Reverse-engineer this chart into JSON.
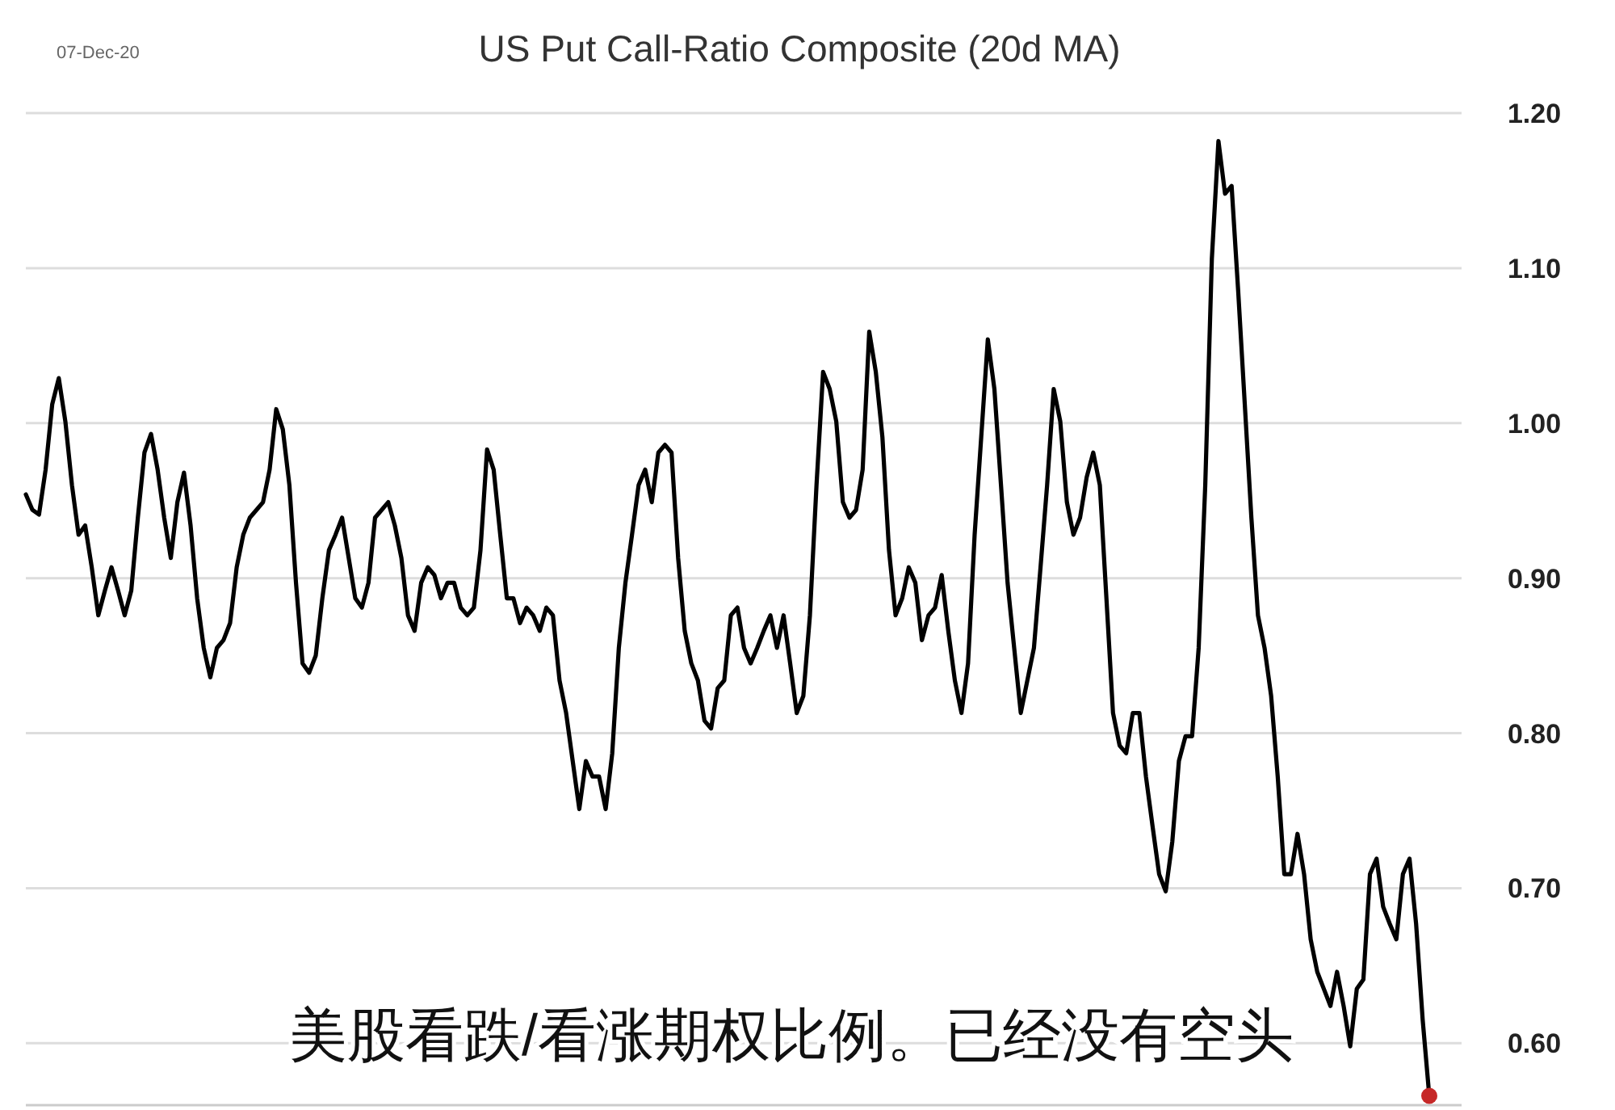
{
  "chart_data": {
    "type": "line",
    "title": "US Put Call-Ratio Composite (20d MA)",
    "annotations": [
      "07-Dec-20",
      "美股看跌/看涨期权比例。已经没有空头"
    ],
    "categories": [
      null,
      null,
      null,
      null,
      null,
      null,
      null,
      null,
      null,
      null,
      null,
      null,
      null,
      null,
      null,
      null,
      null,
      null,
      null,
      null,
      null,
      null,
      null,
      null,
      null,
      null,
      null,
      null,
      null,
      null,
      null,
      null,
      null,
      null,
      null,
      null,
      null,
      null,
      null,
      null,
      null,
      null,
      null,
      null,
      null,
      null,
      null,
      null,
      null,
      null,
      null,
      null,
      null,
      null,
      null,
      null,
      null,
      null,
      null,
      null,
      null,
      null,
      null,
      null,
      null,
      null,
      null,
      null,
      null,
      null,
      null,
      null,
      null,
      null,
      null,
      null,
      null,
      null,
      null,
      null,
      null,
      null,
      null,
      null,
      null,
      null,
      null,
      null,
      null,
      null,
      null,
      null,
      null,
      null,
      null,
      null,
      null,
      null,
      null,
      null,
      null,
      null,
      null,
      null,
      null,
      null,
      null,
      null,
      null,
      null,
      null,
      null,
      null,
      null,
      null,
      null,
      null,
      null,
      null,
      null,
      null,
      null,
      null,
      null,
      null,
      null,
      null,
      null,
      null,
      null,
      null,
      null,
      null,
      null,
      null,
      null,
      null,
      null,
      null,
      null,
      null,
      null,
      null,
      null,
      null,
      null,
      null,
      null,
      null,
      null,
      null,
      null,
      null,
      null,
      null,
      null,
      null,
      null,
      null,
      null,
      null,
      null,
      null,
      null,
      null,
      null,
      null,
      null,
      null,
      null,
      null,
      null,
      null,
      null,
      null,
      null,
      null,
      null,
      null,
      null,
      null,
      null,
      null,
      null,
      null,
      null,
      null,
      null,
      null,
      null,
      null,
      null,
      null,
      null,
      null,
      null,
      null,
      null,
      null,
      null,
      null,
      null,
      null,
      null,
      null,
      null,
      null,
      null,
      null,
      null,
      null,
      null,
      null,
      null
    ],
    "series": [
      {
        "color": "#000000",
        "values": [
          0.954,
          0.944,
          0.941,
          0.97,
          1.012,
          1.029,
          1.001,
          0.96,
          0.928,
          0.934,
          0.907,
          0.876,
          0.892,
          0.907,
          0.892,
          0.876,
          0.892,
          0.939,
          0.981,
          0.993,
          0.97,
          0.939,
          0.913,
          0.949,
          0.968,
          0.934,
          0.887,
          0.855,
          0.836,
          0.855,
          0.86,
          0.871,
          0.907,
          0.928,
          0.939,
          0.944,
          0.949,
          0.97,
          1.009,
          0.996,
          0.96,
          0.897,
          0.845,
          0.839,
          0.85,
          0.887,
          0.918,
          0.928,
          0.939,
          0.913,
          0.887,
          0.881,
          0.897,
          0.939,
          0.944,
          0.949,
          0.934,
          0.913,
          0.876,
          0.866,
          0.897,
          0.907,
          0.902,
          0.887,
          0.897,
          0.897,
          0.881,
          0.876,
          0.881,
          0.918,
          0.983,
          0.97,
          0.928,
          0.887,
          0.887,
          0.871,
          0.881,
          0.876,
          0.866,
          0.881,
          0.876,
          0.834,
          0.813,
          0.782,
          0.751,
          0.782,
          0.772,
          0.772,
          0.751,
          0.787,
          0.855,
          0.897,
          0.928,
          0.96,
          0.97,
          0.949,
          0.981,
          0.986,
          0.981,
          0.913,
          0.866,
          0.845,
          0.834,
          0.808,
          0.803,
          0.829,
          0.834,
          0.876,
          0.881,
          0.855,
          0.845,
          0.855,
          0.866,
          0.876,
          0.855,
          0.876,
          0.845,
          0.813,
          0.824,
          0.876,
          0.96,
          1.033,
          1.022,
          1.001,
          0.949,
          0.939,
          0.944,
          0.97,
          1.059,
          1.033,
          0.991,
          0.918,
          0.876,
          0.887,
          0.907,
          0.897,
          0.86,
          0.876,
          0.881,
          0.902,
          0.866,
          0.834,
          0.813,
          0.845,
          0.928,
          0.991,
          1.054,
          1.022,
          0.96,
          0.897,
          0.855,
          0.813,
          0.834,
          0.855,
          0.907,
          0.96,
          1.022,
          1.001,
          0.949,
          0.928,
          0.939,
          0.965,
          0.981,
          0.96,
          0.887,
          0.813,
          0.792,
          0.787,
          0.813,
          0.813,
          0.772,
          0.74,
          0.709,
          0.698,
          0.73,
          0.782,
          0.798,
          0.798,
          0.855,
          0.96,
          1.106,
          1.182,
          1.148,
          1.153,
          1.085,
          1.012,
          0.939,
          0.876,
          0.855,
          0.824,
          0.772,
          0.709,
          0.709,
          0.735,
          0.709,
          0.667,
          0.646,
          0.635,
          0.624,
          0.646,
          0.624,
          0.598,
          0.635,
          0.641,
          0.709,
          0.719,
          0.688,
          0.677,
          0.667,
          0.709,
          0.719,
          0.677,
          0.615,
          0.566
        ]
      },
      {
        "type": "scatter",
        "color": "#c62828",
        "values": [
          null,
          null,
          null,
          null,
          null,
          null,
          null,
          null,
          null,
          null,
          null,
          null,
          null,
          null,
          null,
          null,
          null,
          null,
          null,
          null,
          null,
          null,
          null,
          null,
          null,
          null,
          null,
          null,
          null,
          null,
          null,
          null,
          null,
          null,
          null,
          null,
          null,
          null,
          null,
          null,
          null,
          null,
          null,
          null,
          null,
          null,
          null,
          null,
          null,
          null,
          null,
          null,
          null,
          null,
          null,
          null,
          null,
          null,
          null,
          null,
          null,
          null,
          null,
          null,
          null,
          null,
          null,
          null,
          null,
          null,
          null,
          null,
          null,
          null,
          null,
          null,
          null,
          null,
          null,
          null,
          null,
          null,
          null,
          null,
          null,
          null,
          null,
          null,
          null,
          null,
          null,
          null,
          null,
          null,
          null,
          null,
          null,
          null,
          null,
          null,
          null,
          null,
          null,
          null,
          null,
          null,
          null,
          null,
          null,
          null,
          null,
          null,
          null,
          null,
          null,
          null,
          null,
          null,
          null,
          null,
          null,
          null,
          null,
          null,
          null,
          null,
          null,
          null,
          null,
          null,
          null,
          null,
          null,
          null,
          null,
          null,
          null,
          null,
          null,
          null,
          null,
          null,
          null,
          null,
          null,
          null,
          null,
          null,
          null,
          null,
          null,
          null,
          null,
          null,
          null,
          null,
          null,
          null,
          null,
          null,
          null,
          null,
          null,
          null,
          null,
          null,
          null,
          null,
          null,
          null,
          null,
          null,
          null,
          null,
          null,
          null,
          null,
          null,
          null,
          null,
          null,
          null,
          null,
          null,
          null,
          null,
          null,
          null,
          null,
          null,
          null,
          null,
          null,
          null,
          null,
          null,
          null,
          null,
          null,
          null,
          null,
          null,
          null,
          null,
          null,
          null,
          null,
          null,
          null,
          null,
          null,
          null,
          null,
          0.566
        ]
      }
    ],
    "ylim": [
      0.56,
      1.2
    ],
    "yticks": [
      {
        "value": 0.6,
        "label": "0.60"
      },
      {
        "value": 0.7,
        "label": "0.70"
      },
      {
        "value": 0.8,
        "label": "0.80"
      },
      {
        "value": 0.9,
        "label": "0.90"
      },
      {
        "value": 1.0,
        "label": "1.00"
      },
      {
        "value": 1.1,
        "label": "1.10"
      },
      {
        "value": 1.2,
        "label": "1.20"
      }
    ],
    "grid": "y",
    "tick_labels": "y"
  }
}
